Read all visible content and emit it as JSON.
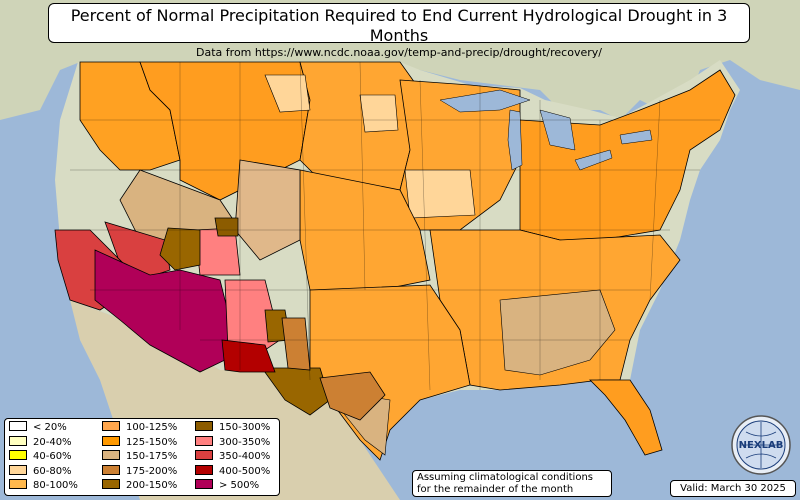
{
  "header": {
    "title": "Percent of Normal Precipitation Required to End Current Hydrological Drought in 3 Months",
    "subtitle": "Data from https://www.ncdc.noaa.gov/temp-and-precip/drought/recovery/"
  },
  "legend": {
    "items": [
      {
        "label": "< 20%",
        "color": "#ffffff"
      },
      {
        "label": "20-40%",
        "color": "#ffffc0"
      },
      {
        "label": "40-60%",
        "color": "#ffff00"
      },
      {
        "label": "60-80%",
        "color": "#ffd699"
      },
      {
        "label": "80-100%",
        "color": "#ffb84d"
      },
      {
        "label": "100-125%",
        "color": "#ffa64d"
      },
      {
        "label": "125-150%",
        "color": "#ff9900"
      },
      {
        "label": "150-175%",
        "color": "#d9b380"
      },
      {
        "label": "175-200%",
        "color": "#cc8033"
      },
      {
        "label": "200-150%",
        "color": "#996600"
      },
      {
        "label": "150-300%",
        "color": "#8c5c00"
      },
      {
        "label": "300-350%",
        "color": "#ff8080"
      },
      {
        "label": "350-400%",
        "color": "#d94040"
      },
      {
        "label": "400-500%",
        "color": "#b30000"
      },
      {
        "label": "> 500%",
        "color": "#b00058"
      }
    ]
  },
  "note": {
    "line1": "Assuming climatological conditions",
    "line2": "for the remainder of the month"
  },
  "valid": "Valid: March 30 2025",
  "logo": {
    "text": "NEXLAB",
    "icon": "globe-logo-icon"
  },
  "colors": {
    "ocean": "#9db8d8",
    "land": "#d8d8c0",
    "base_region": "#ffa122"
  }
}
